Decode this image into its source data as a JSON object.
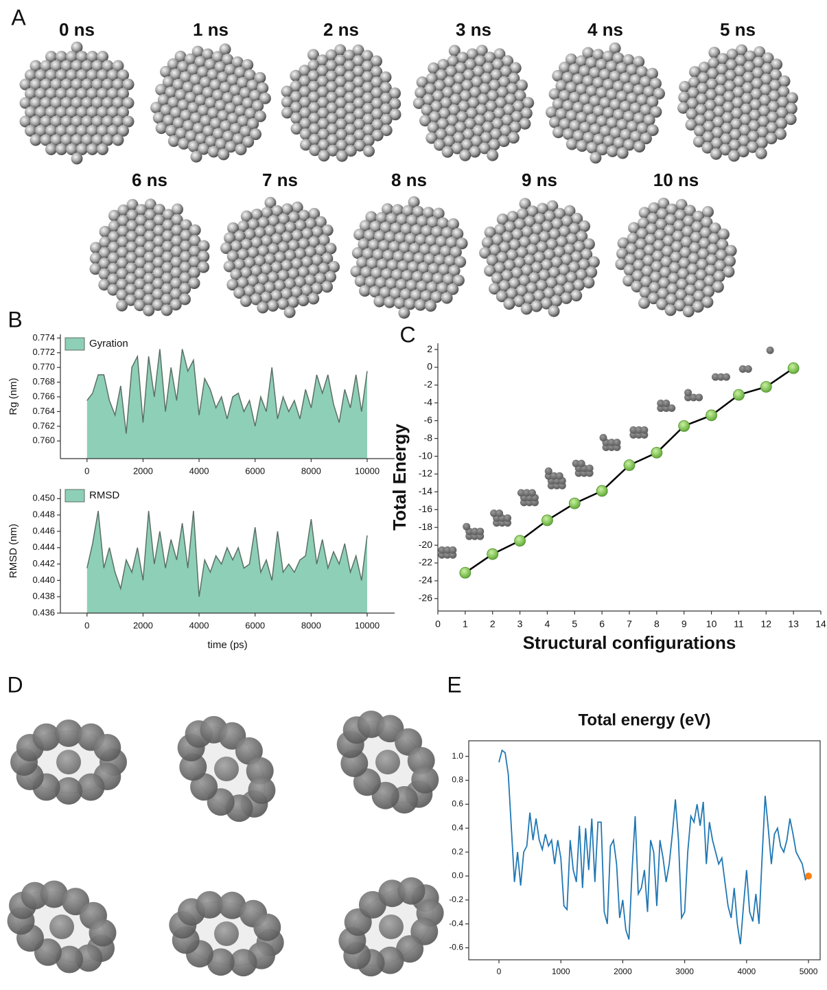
{
  "panel_labels": [
    "A",
    "B",
    "C",
    "D",
    "E"
  ],
  "snapshots": [
    "0 ns",
    "1 ns",
    "2 ns",
    "3 ns",
    "4 ns",
    "5 ns",
    "6 ns",
    "7 ns",
    "8 ns",
    "9 ns",
    "10 ns"
  ],
  "chart_data": [
    {
      "type": "area",
      "ylabel": "Rg (nm)",
      "legend": true,
      "x": [
        0,
        200,
        400,
        600,
        800,
        1000,
        1200,
        1400,
        1600,
        1800,
        2000,
        2200,
        2400,
        2600,
        2800,
        3000,
        3200,
        3400,
        3600,
        3800,
        4000,
        4200,
        4400,
        4600,
        4800,
        5000,
        5200,
        5400,
        5600,
        5800,
        6000,
        6200,
        6400,
        6600,
        6800,
        7000,
        7200,
        7400,
        7600,
        7800,
        8000,
        8200,
        8400,
        8600,
        8800,
        9000,
        9200,
        9400,
        9600,
        9800,
        10000
      ],
      "series": [
        {
          "name": "Gyration",
          "color": "#8ecfb7",
          "line_color": "#5b6f66",
          "values": [
            0.7655,
            0.7665,
            0.769,
            0.769,
            0.7655,
            0.7635,
            0.7675,
            0.761,
            0.77,
            0.7715,
            0.7625,
            0.7715,
            0.766,
            0.7725,
            0.764,
            0.77,
            0.7655,
            0.7725,
            0.7695,
            0.771,
            0.7635,
            0.7685,
            0.767,
            0.7645,
            0.766,
            0.763,
            0.766,
            0.7665,
            0.764,
            0.7655,
            0.762,
            0.766,
            0.764,
            0.77,
            0.763,
            0.766,
            0.764,
            0.7655,
            0.763,
            0.767,
            0.7645,
            0.769,
            0.7665,
            0.769,
            0.765,
            0.7625,
            0.767,
            0.7645,
            0.769,
            0.764,
            0.7695
          ]
        }
      ],
      "xlim": [
        -950,
        10980
      ],
      "xticks": [
        0,
        2000,
        4000,
        6000,
        8000,
        10000
      ],
      "ylim": [
        0.7576,
        0.7745
      ],
      "yticks": [
        {
          "value": 0.76,
          "label": "0.760"
        },
        {
          "value": 0.762,
          "label": "0.762"
        },
        {
          "value": 0.764,
          "label": "0.764"
        },
        {
          "value": 0.766,
          "label": "0.766"
        },
        {
          "value": 0.768,
          "label": "0.768"
        },
        {
          "value": 0.77,
          "label": "0.770"
        },
        {
          "value": 0.772,
          "label": "0.772"
        },
        {
          "value": 0.774,
          "label": "0.774"
        }
      ]
    },
    {
      "type": "area",
      "ylabel": "RMSD (nm)",
      "xlabel": "time (ps)",
      "legend": true,
      "x": [
        0,
        200,
        400,
        600,
        800,
        1000,
        1200,
        1400,
        1600,
        1800,
        2000,
        2200,
        2400,
        2600,
        2800,
        3000,
        3200,
        3400,
        3600,
        3800,
        4000,
        4200,
        4400,
        4600,
        4800,
        5000,
        5200,
        5400,
        5600,
        5800,
        6000,
        6200,
        6400,
        6600,
        6800,
        7000,
        7200,
        7400,
        7600,
        7800,
        8000,
        8200,
        8400,
        8600,
        8800,
        9000,
        9200,
        9400,
        9600,
        9800,
        10000
      ],
      "series": [
        {
          "name": "RMSD",
          "color": "#8ecfb7",
          "line_color": "#5b6f66",
          "values": [
            0.4415,
            0.4445,
            0.4485,
            0.4415,
            0.444,
            0.441,
            0.439,
            0.4425,
            0.441,
            0.444,
            0.44,
            0.4485,
            0.442,
            0.446,
            0.4415,
            0.445,
            0.4425,
            0.447,
            0.4415,
            0.4485,
            0.438,
            0.4425,
            0.441,
            0.443,
            0.442,
            0.444,
            0.4425,
            0.444,
            0.4415,
            0.442,
            0.4465,
            0.441,
            0.4425,
            0.44,
            0.446,
            0.441,
            0.442,
            0.441,
            0.4425,
            0.443,
            0.4475,
            0.442,
            0.445,
            0.4415,
            0.4435,
            0.442,
            0.4445,
            0.441,
            0.443,
            0.44,
            0.4455
          ]
        }
      ],
      "xlim": [
        -950,
        10980
      ],
      "xticks": [
        0,
        2000,
        4000,
        6000,
        8000,
        10000
      ],
      "ylim": [
        0.436,
        0.4512
      ],
      "yticks": [
        {
          "value": 0.436,
          "label": "0.436"
        },
        {
          "value": 0.438,
          "label": "0.438"
        },
        {
          "value": 0.44,
          "label": "0.440"
        },
        {
          "value": 0.442,
          "label": "0.442"
        },
        {
          "value": 0.444,
          "label": "0.444"
        },
        {
          "value": 0.446,
          "label": "0.446"
        },
        {
          "value": 0.448,
          "label": "0.448"
        },
        {
          "value": 0.45,
          "label": "0.450"
        }
      ]
    },
    {
      "type": "line",
      "xlabel": "Structural configurations",
      "ylabel": "Total Energy",
      "x": [
        1,
        2,
        3,
        4,
        5,
        6,
        7,
        8,
        9,
        10,
        11,
        12,
        13
      ],
      "series": [
        {
          "color": "#000000",
          "marker_color": "#7bc84a",
          "values": [
            -23.1,
            -21.0,
            -19.5,
            -17.2,
            -15.3,
            -13.9,
            -11.0,
            -9.6,
            -6.6,
            -5.4,
            -3.1,
            -2.2,
            -0.1
          ]
        }
      ],
      "xlim": [
        0,
        14
      ],
      "xticks": [
        0,
        1,
        2,
        3,
        4,
        5,
        6,
        7,
        8,
        9,
        10,
        11,
        12,
        13,
        14
      ],
      "ylim": [
        -27.4,
        2.7
      ],
      "yticks": [
        -26,
        -24,
        -22,
        -20,
        -18,
        -16,
        -14,
        -12,
        -10,
        -8,
        -6,
        -4,
        -2,
        0,
        2
      ]
    },
    {
      "type": "line",
      "title": "Total energy (eV)",
      "x": [
        0,
        50,
        100,
        150,
        200,
        250,
        300,
        350,
        400,
        450,
        500,
        550,
        600,
        650,
        700,
        750,
        800,
        850,
        900,
        950,
        1000,
        1050,
        1100,
        1150,
        1200,
        1250,
        1300,
        1350,
        1400,
        1450,
        1500,
        1550,
        1600,
        1650,
        1700,
        1750,
        1800,
        1850,
        1900,
        1950,
        2000,
        2050,
        2100,
        2150,
        2200,
        2250,
        2300,
        2350,
        2400,
        2450,
        2500,
        2550,
        2600,
        2650,
        2700,
        2750,
        2800,
        2850,
        2900,
        2950,
        3000,
        3050,
        3100,
        3150,
        3200,
        3250,
        3300,
        3350,
        3400,
        3450,
        3500,
        3550,
        3600,
        3650,
        3700,
        3750,
        3800,
        3850,
        3900,
        3950,
        4000,
        4050,
        4100,
        4150,
        4200,
        4250,
        4300,
        4350,
        4400,
        4450,
        4500,
        4550,
        4600,
        4650,
        4700,
        4750,
        4800,
        4850,
        4900,
        4950,
        5000
      ],
      "series": [
        {
          "color": "#1f77b4",
          "values": [
            0.95,
            1.05,
            1.03,
            0.85,
            0.4,
            -0.05,
            0.2,
            -0.08,
            0.2,
            0.25,
            0.53,
            0.3,
            0.48,
            0.3,
            0.22,
            0.35,
            0.25,
            0.3,
            0.1,
            0.3,
            0.15,
            -0.25,
            -0.28,
            0.3,
            0.05,
            -0.05,
            0.42,
            -0.1,
            0.4,
            0.05,
            0.48,
            -0.05,
            0.45,
            0.45,
            -0.3,
            -0.4,
            0.25,
            0.3,
            0.1,
            -0.35,
            -0.2,
            -0.45,
            -0.53,
            0.05,
            0.5,
            -0.15,
            -0.1,
            0.05,
            -0.3,
            0.3,
            0.2,
            -0.25,
            0.3,
            0.15,
            -0.05,
            0.1,
            0.35,
            0.64,
            0.3,
            -0.35,
            -0.3,
            0.2,
            0.5,
            0.45,
            0.6,
            0.42,
            0.62,
            0.1,
            0.45,
            0.3,
            0.2,
            0.1,
            0.15,
            -0.05,
            -0.25,
            -0.35,
            -0.1,
            -0.4,
            -0.57,
            -0.25,
            0.05,
            -0.3,
            -0.38,
            -0.15,
            -0.4,
            0.15,
            0.67,
            0.4,
            0.1,
            0.35,
            0.4,
            0.25,
            0.2,
            0.3,
            0.48,
            0.35,
            0.2,
            0.15,
            0.1,
            -0.03,
            0
          ]
        },
        {
          "color": "#ff7f0e",
          "style": "point",
          "x": [
            5000
          ],
          "values": [
            0
          ]
        }
      ],
      "xlim": [
        -488,
        5188
      ],
      "xticks": [
        0,
        1000,
        2000,
        3000,
        4000,
        5000
      ],
      "ylim": [
        -0.7,
        1.13
      ],
      "yticks": [
        -0.6,
        -0.4,
        -0.2,
        {
          "value": 0,
          "label": "0.0"
        },
        0.2,
        0.4,
        0.6,
        0.8,
        {
          "value": 1,
          "label": "1.0"
        }
      ]
    }
  ]
}
